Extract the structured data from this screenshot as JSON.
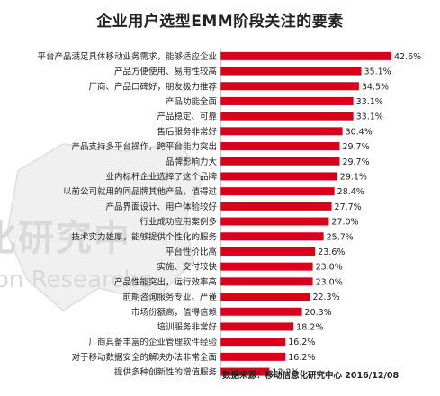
{
  "colors": {
    "bar": "#d9001b",
    "text": "#222222",
    "watermark": "#d9d9d9"
  },
  "watermark": {
    "cn": "化研究中",
    "en": "on Researche"
  },
  "source_note": "数据来源：移动信息化研究中心 2016/12/08",
  "chart_data": {
    "type": "bar",
    "orientation": "horizontal",
    "title": "企业用户选型EMM阶段关注的要素",
    "xlabel": "",
    "ylabel": "",
    "xlim": [
      0,
      45
    ],
    "grid": false,
    "categories": [
      "平台产品满足具体移动业务需求，能够适应企业",
      "产品方便使用、易用性较高",
      "厂商、产品口碑好，朋友极力推荐",
      "产品功能全面",
      "产品稳定、可靠",
      "售后服务非常好",
      "产品支持多平台操作，跨平台能力突出",
      "品牌影响力大",
      "业内标杆企业选择了这个品牌",
      "以前公司就用的同品牌其他产品，值得过",
      "产品界面设计、用户体验较好",
      "行业成功应用案例多",
      "技术实力雄厚，能够提供个性化的服务",
      "平台性价比高",
      "实施、交付较快",
      "产品性能突出，运行效率高",
      "前期咨询服务专业、严谨",
      "市场份额高，值得信赖",
      "培训服务非常好",
      "厂商具备丰富的企业管理软件经验",
      "对于移动数据安全的解决办法非常全面",
      "提供多种创新性的增值服务"
    ],
    "values": [
      42.6,
      35.1,
      34.5,
      33.1,
      33.1,
      30.4,
      29.7,
      29.7,
      29.1,
      28.4,
      27.7,
      27.0,
      25.7,
      23.6,
      23.0,
      23.0,
      22.3,
      20.3,
      18.2,
      16.2,
      16.2,
      12.2
    ],
    "value_labels": [
      "42.6%",
      "35.1%",
      "34.5%",
      "33.1%",
      "33.1%",
      "30.4%",
      "29.7%",
      "29.7%",
      "29.1%",
      "28.4%",
      "27.7%",
      "27.0%",
      "25.7%",
      "23.6%",
      "23.0%",
      "23.0%",
      "22.3%",
      "20.3%",
      "18.2%",
      "16.2%",
      "16.2%",
      "12.2%"
    ]
  }
}
